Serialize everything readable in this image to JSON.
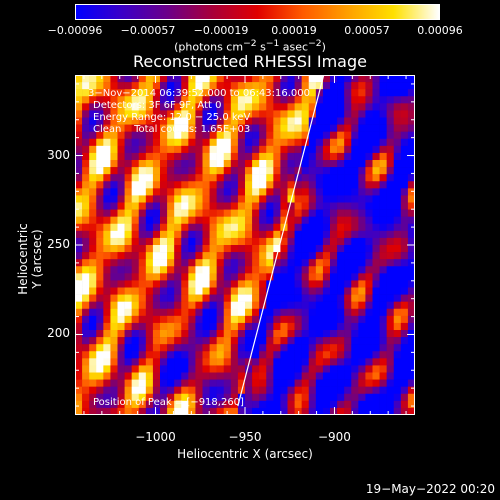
{
  "chart_data": {
    "type": "heatmap",
    "title": "Reconstructed RHESSI Image",
    "xlabel": "Heliocentric X (arcsec)",
    "ylabel": "Heliocentric Y (arcsec)",
    "xlim": [
      -1045,
      -855
    ],
    "ylim": [
      155,
      345
    ],
    "x_ticks": [
      -1000,
      -950,
      -900
    ],
    "x_tick_labels": [
      "−1000",
      "−950",
      "−900"
    ],
    "y_ticks": [
      200,
      250,
      300
    ],
    "y_tick_labels": [
      "200",
      "250",
      "300"
    ],
    "colorbar": {
      "ticks": [
        "−0.00096",
        "−0.00057",
        "−0.00019",
        "0.00019",
        "0.00057",
        "0.00096"
      ],
      "units_main": "(photons cm",
      "units_sup1": "−2",
      "units_mid1": " s",
      "units_sup2": "−1",
      "units_mid2": " asec",
      "units_sup3": "−2",
      "units_end": ")",
      "range": [
        -0.00096,
        0.00096
      ],
      "colors": [
        "#0000ff",
        "#3a00c8",
        "#6a008a",
        "#a8003a",
        "#e00000",
        "#ff5a00",
        "#ffa000",
        "#ffe000",
        "#ffffff"
      ]
    },
    "annotations": {
      "time": "3−Nov−2014 06:39:52.000 to 06:43:16.000",
      "detectors": "Detectors: 3F 6F 9F, Att 0",
      "energy": "Energy Range: 12.0 − 25.0 keV",
      "method": "Clean    Total counts: 1.65E+03",
      "peak": "Position of Peak = [−918,260]"
    },
    "limb_line": {
      "points": [
        [
          -954,
          160
        ],
        [
          -906,
          345
        ]
      ]
    },
    "peak_position": [
      -918,
      260
    ]
  },
  "footer": {
    "timestamp": "19−May−2022 00:20"
  }
}
